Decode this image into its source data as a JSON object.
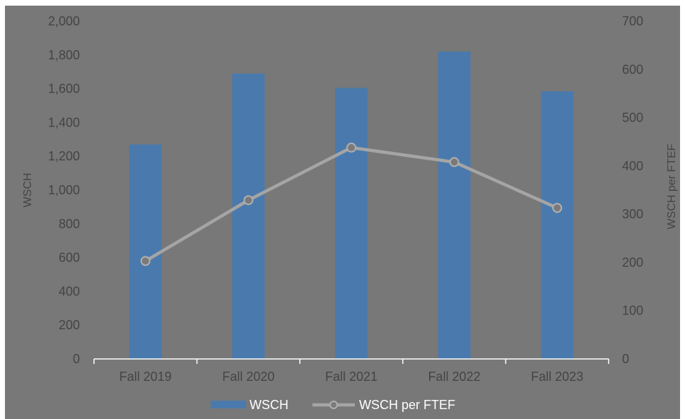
{
  "chart_data": {
    "type": "bar",
    "categories": [
      "Fall 2019",
      "Fall 2020",
      "Fall 2021",
      "Fall 2022",
      "Fall 2023"
    ],
    "series": [
      {
        "name": "WSCH",
        "type": "bar",
        "axis": "left",
        "values": [
          1270,
          1690,
          1605,
          1820,
          1585
        ]
      },
      {
        "name": "WSCH per FTEF",
        "type": "line",
        "axis": "right",
        "values": [
          203,
          329,
          438,
          408,
          313
        ]
      }
    ],
    "ylabel": "WSCH",
    "y2label": "WSCH per FTEF",
    "ylim": [
      0,
      2000
    ],
    "y2lim": [
      0,
      700
    ],
    "yticks": [
      "0",
      "200",
      "400",
      "600",
      "800",
      "1,000",
      "1,200",
      "1,400",
      "1,600",
      "1,800",
      "2,000"
    ],
    "y2ticks": [
      "0",
      "100",
      "200",
      "300",
      "400",
      "500",
      "600",
      "700"
    ],
    "legend": "bottom",
    "colors": {
      "bar": "#4A7AAD",
      "line": "#A5A5A5",
      "background": "#787878",
      "text": "#444444"
    }
  }
}
